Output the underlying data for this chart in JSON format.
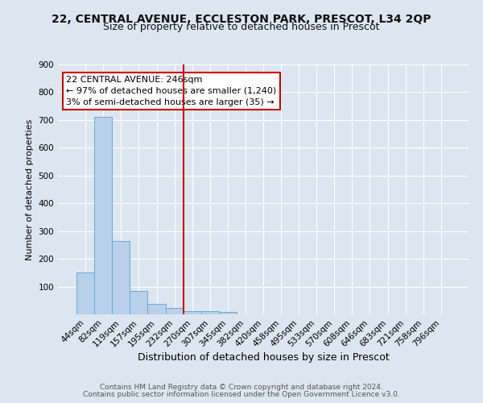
{
  "title": "22, CENTRAL AVENUE, ECCLESTON PARK, PRESCOT, L34 2QP",
  "subtitle": "Size of property relative to detached houses in Prescot",
  "xlabel": "Distribution of detached houses by size in Prescot",
  "ylabel": "Number of detached properties",
  "bar_labels": [
    "44sqm",
    "82sqm",
    "119sqm",
    "157sqm",
    "195sqm",
    "232sqm",
    "270sqm",
    "307sqm",
    "345sqm",
    "382sqm",
    "420sqm",
    "458sqm",
    "495sqm",
    "533sqm",
    "570sqm",
    "608sqm",
    "646sqm",
    "683sqm",
    "721sqm",
    "758sqm",
    "796sqm"
  ],
  "bar_values": [
    150,
    710,
    265,
    83,
    38,
    22,
    12,
    12,
    10,
    0,
    0,
    0,
    0,
    0,
    0,
    0,
    0,
    0,
    0,
    0,
    0
  ],
  "bar_color": "#b8d0ea",
  "bar_edge_color": "#6aaad4",
  "vline_x": 5.5,
  "vline_color": "#cc0000",
  "annotation_text": "22 CENTRAL AVENUE: 246sqm\n← 97% of detached houses are smaller (1,240)\n3% of semi-detached houses are larger (35) →",
  "annotation_box_color": "#ffffff",
  "annotation_box_edge": "#cc0000",
  "background_color": "#dce6f0",
  "grid_color": "#ffffff",
  "ylim": [
    0,
    900
  ],
  "yticks": [
    0,
    100,
    200,
    300,
    400,
    500,
    600,
    700,
    800,
    900
  ],
  "footer1": "Contains HM Land Registry data © Crown copyright and database right 2024.",
  "footer2": "Contains public sector information licensed under the Open Government Licence v3.0.",
  "title_fontsize": 10,
  "subtitle_fontsize": 9,
  "xlabel_fontsize": 9,
  "ylabel_fontsize": 8,
  "tick_fontsize": 7.5,
  "footer_fontsize": 6.5
}
